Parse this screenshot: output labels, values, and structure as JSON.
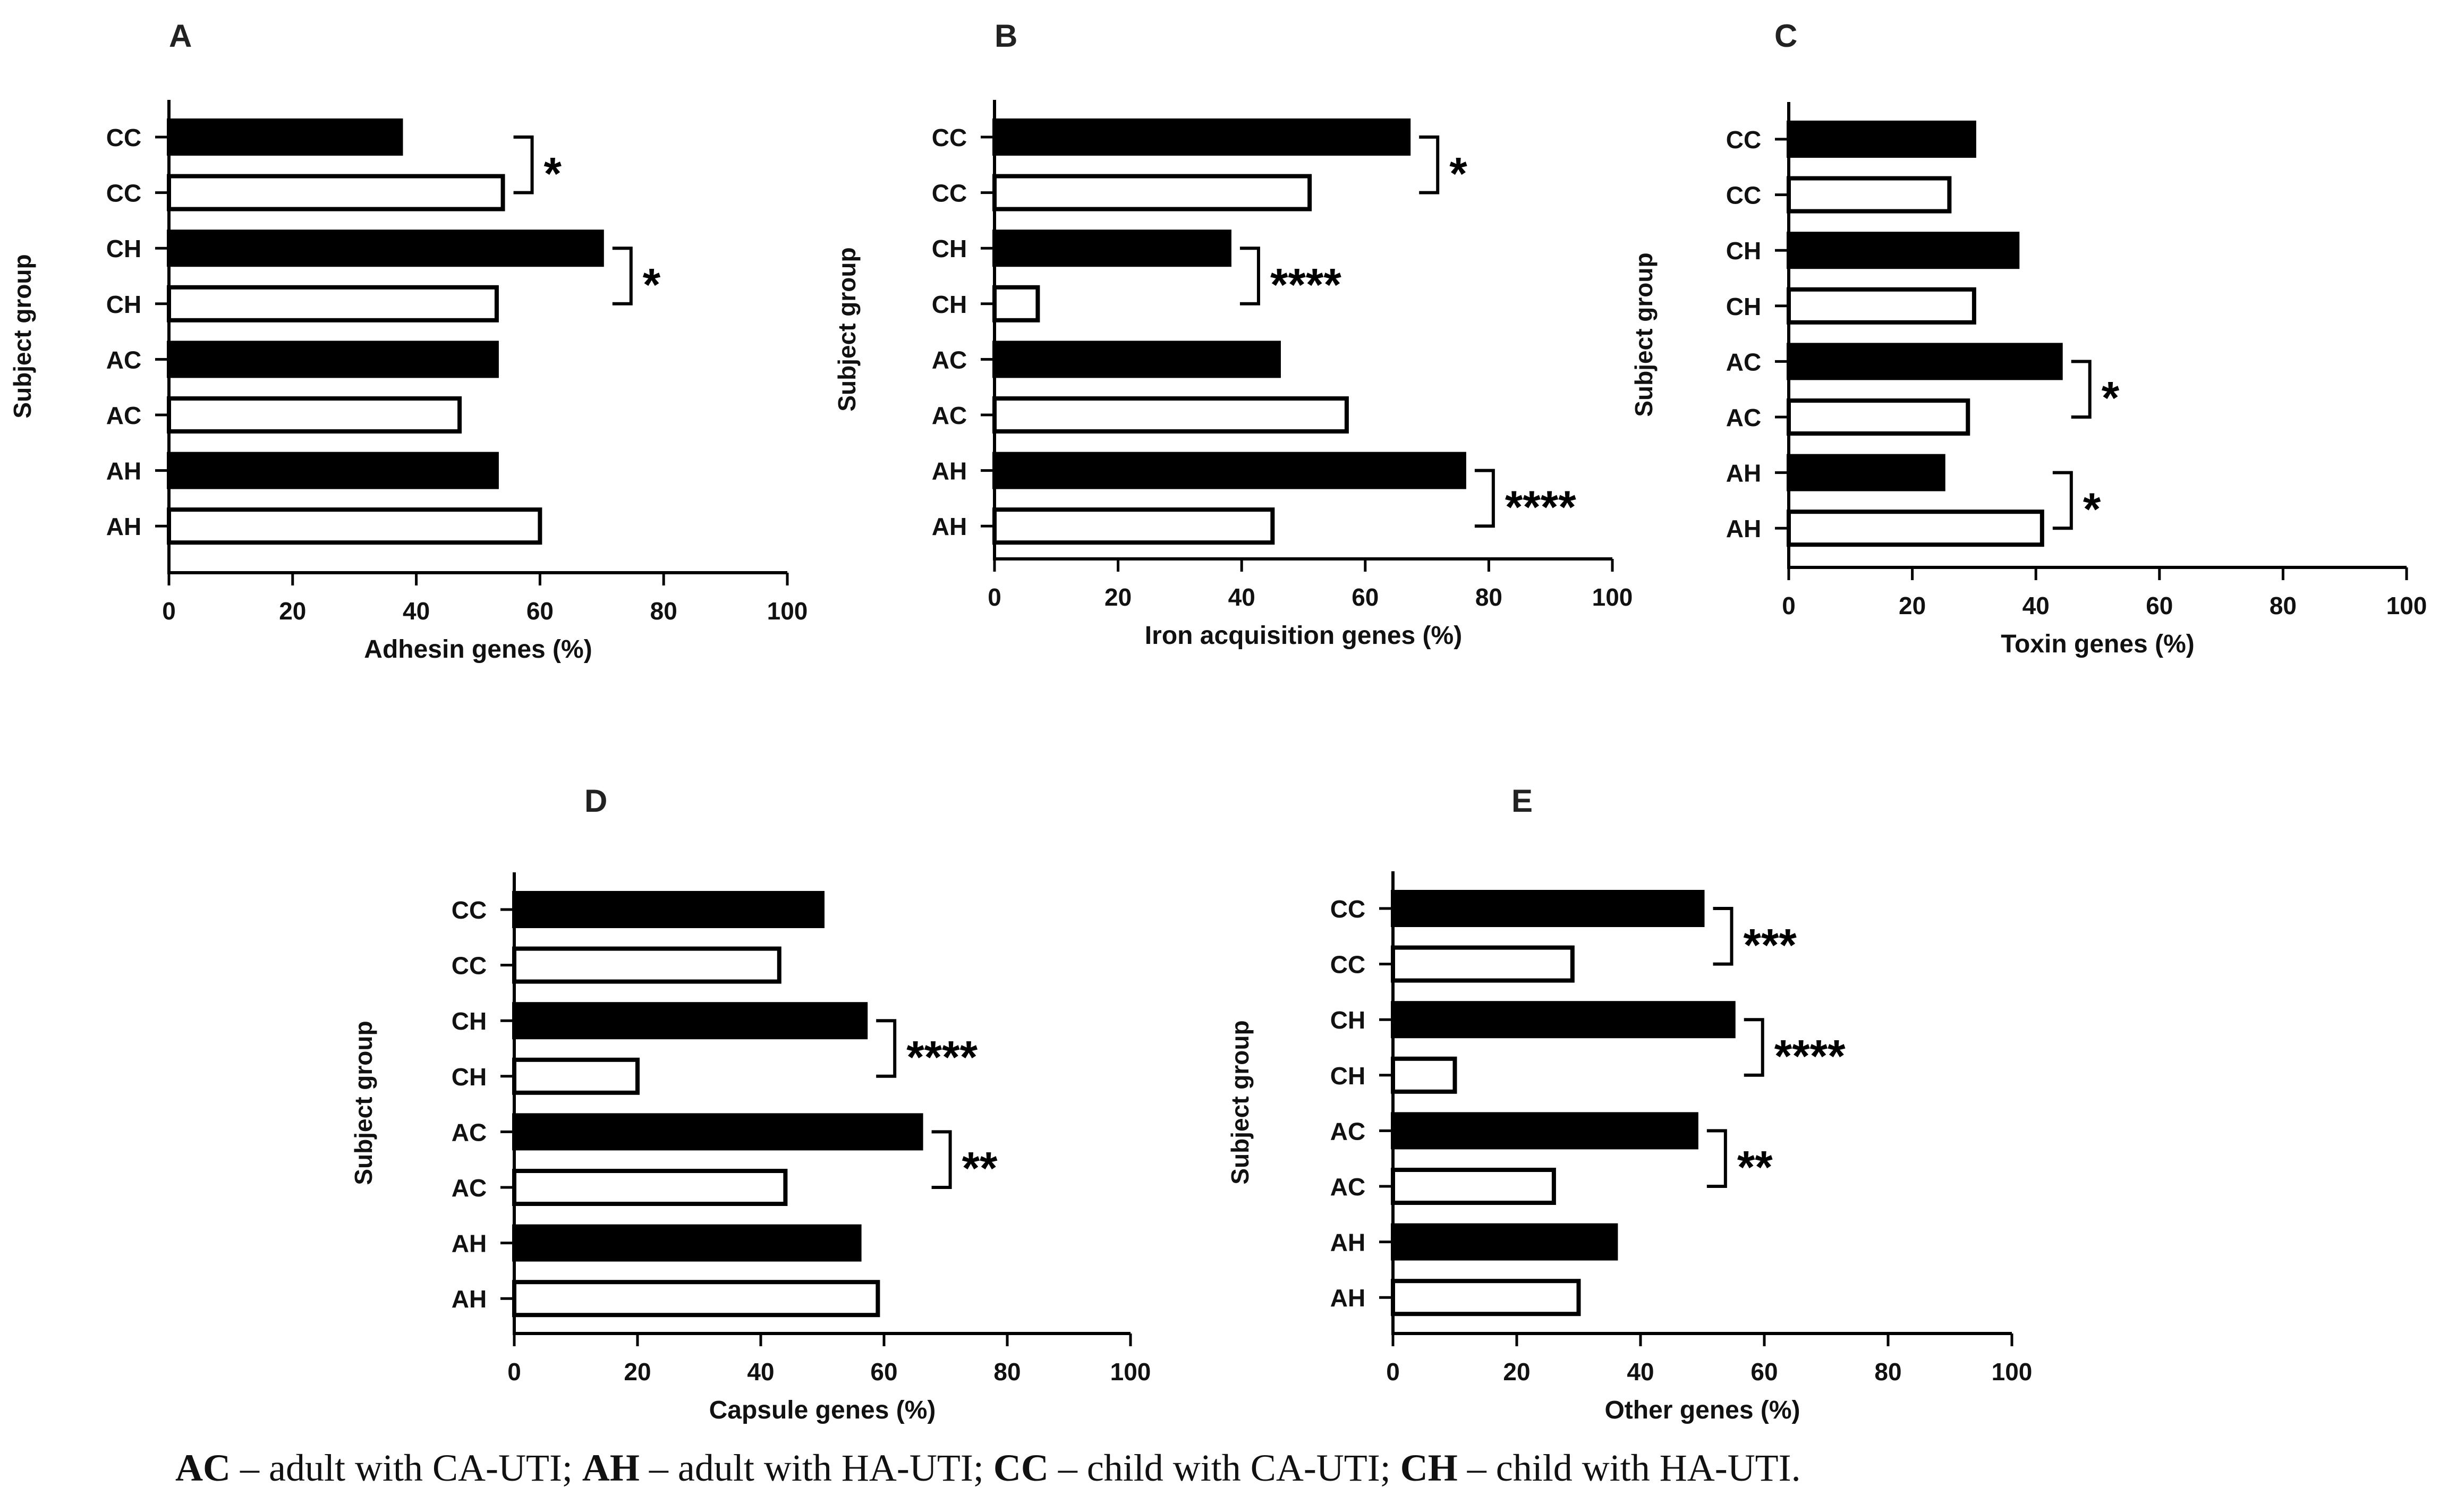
{
  "figure": {
    "ylabel_common": "Subject group",
    "caption": {
      "parts": [
        {
          "abbr": "AC",
          "text": " – adult with CA-UTI; "
        },
        {
          "abbr": "AH",
          "text": " – adult with HA-UTI; "
        },
        {
          "abbr": "CC",
          "text": " – child with CA-UTI; "
        },
        {
          "abbr": "CH",
          "text": " – child with HA-UTI."
        }
      ]
    },
    "colors": {
      "filled": "#000000",
      "open": "#ffffff",
      "stroke": "#000000"
    }
  },
  "chart_data": [
    {
      "panel": "A",
      "type": "bar",
      "orientation": "horizontal",
      "xlabel": "Adhesin genes (%)",
      "ylabel": "Subject group",
      "xlim": [
        0,
        100
      ],
      "xticks": [
        0,
        20,
        40,
        60,
        80,
        100
      ],
      "categories": [
        "CC",
        "CC",
        "CH",
        "CH",
        "AC",
        "AC",
        "AH",
        "AH"
      ],
      "fill": [
        "black",
        "white",
        "black",
        "white",
        "black",
        "white",
        "black",
        "white"
      ],
      "values": [
        37.5,
        54,
        70,
        53,
        53,
        47,
        53,
        60
      ],
      "significance": [
        {
          "rows": [
            0,
            1
          ],
          "label": "*"
        },
        {
          "rows": [
            2,
            3
          ],
          "label": "*"
        }
      ]
    },
    {
      "panel": "B",
      "type": "bar",
      "orientation": "horizontal",
      "xlabel": "Iron acquisition genes (%)",
      "ylabel": "Subject group",
      "xlim": [
        0,
        100
      ],
      "xticks": [
        0,
        20,
        40,
        60,
        80,
        100
      ],
      "categories": [
        "CC",
        "CC",
        "CH",
        "CH",
        "AC",
        "AC",
        "AH",
        "AH"
      ],
      "fill": [
        "black",
        "white",
        "black",
        "white",
        "black",
        "white",
        "black",
        "white"
      ],
      "values": [
        67,
        51,
        38,
        7,
        46,
        57,
        76,
        45
      ],
      "significance": [
        {
          "rows": [
            0,
            1
          ],
          "label": "*"
        },
        {
          "rows": [
            2,
            3
          ],
          "label": "****"
        },
        {
          "rows": [
            6,
            7
          ],
          "label": "****"
        }
      ]
    },
    {
      "panel": "C",
      "type": "bar",
      "orientation": "horizontal",
      "xlabel": "Toxin genes (%)",
      "ylabel": "Subject group",
      "xlim": [
        0,
        100
      ],
      "xticks": [
        0,
        20,
        40,
        60,
        80,
        100
      ],
      "categories": [
        "CC",
        "CC",
        "CH",
        "CH",
        "AC",
        "AC",
        "AH",
        "AH"
      ],
      "fill": [
        "black",
        "white",
        "black",
        "white",
        "black",
        "white",
        "black",
        "white"
      ],
      "values": [
        30,
        26,
        37,
        30,
        44,
        29,
        25,
        41
      ],
      "significance": [
        {
          "rows": [
            4,
            5
          ],
          "label": "*"
        },
        {
          "rows": [
            6,
            7
          ],
          "label": "*"
        }
      ]
    },
    {
      "panel": "D",
      "type": "bar",
      "orientation": "horizontal",
      "xlabel": "Capsule genes (%)",
      "ylabel": "Subject group",
      "xlim": [
        0,
        100
      ],
      "xticks": [
        0,
        20,
        40,
        60,
        80,
        100
      ],
      "categories": [
        "CC",
        "CC",
        "CH",
        "CH",
        "AC",
        "AC",
        "AH",
        "AH"
      ],
      "fill": [
        "black",
        "white",
        "black",
        "white",
        "black",
        "white",
        "black",
        "white"
      ],
      "values": [
        50,
        43,
        57,
        20,
        66,
        44,
        56,
        59
      ],
      "significance": [
        {
          "rows": [
            2,
            3
          ],
          "label": "****"
        },
        {
          "rows": [
            4,
            5
          ],
          "label": "**"
        }
      ]
    },
    {
      "panel": "E",
      "type": "bar",
      "orientation": "horizontal",
      "xlabel": "Other genes (%)",
      "ylabel": "Subject group",
      "xlim": [
        0,
        100
      ],
      "xticks": [
        0,
        20,
        40,
        60,
        80,
        100
      ],
      "categories": [
        "CC",
        "CC",
        "CH",
        "CH",
        "AC",
        "AC",
        "AH",
        "AH"
      ],
      "fill": [
        "black",
        "white",
        "black",
        "white",
        "black",
        "white",
        "black",
        "white"
      ],
      "values": [
        50,
        29,
        55,
        10,
        49,
        26,
        36,
        30
      ],
      "significance": [
        {
          "rows": [
            0,
            1
          ],
          "label": "***"
        },
        {
          "rows": [
            2,
            3
          ],
          "label": "****"
        },
        {
          "rows": [
            4,
            5
          ],
          "label": "**"
        }
      ]
    }
  ]
}
